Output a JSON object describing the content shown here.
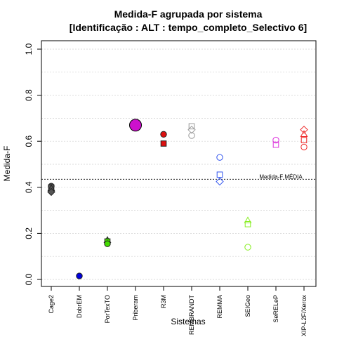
{
  "chart_data": {
    "type": "scatter",
    "title": "Medida-F agrupada por sistema",
    "subtitle": "[Identificação : ALT : tempo_completo_Selectivo 6]",
    "xlabel": "Sistemas",
    "ylabel": "Medida-F",
    "ylim": [
      0,
      1
    ],
    "yticks": [
      "0.0",
      "0.2",
      "0.4",
      "0.6",
      "0.8",
      "1.0"
    ],
    "grid": true,
    "categories": [
      "Cage2",
      "DobrEM",
      "PorTexTO",
      "Priberam",
      "R3M",
      "REMBRANDT",
      "REMMA",
      "SEIGeo",
      "SeRELeP",
      "XIP-L2F/Xerox"
    ],
    "reference_line": {
      "value": 0.435,
      "label": "Medida-F MÉDIA"
    },
    "series": [
      {
        "category": "Cage2",
        "color": "#555555",
        "points": [
          {
            "y": 0.405,
            "shape": "circle",
            "filled": true
          },
          {
            "y": 0.4,
            "shape": "square",
            "filled": true
          },
          {
            "y": 0.395,
            "shape": "triangle",
            "filled": true
          },
          {
            "y": 0.38,
            "shape": "diamond",
            "filled": true
          }
        ]
      },
      {
        "category": "DobrEM",
        "color": "#0000dd",
        "points": [
          {
            "y": 0.015,
            "shape": "circle",
            "filled": true
          }
        ]
      },
      {
        "category": "PorTexTO",
        "color": "#44dd00",
        "points": [
          {
            "y": 0.17,
            "shape": "triangle",
            "filled": true
          },
          {
            "y": 0.165,
            "shape": "square",
            "filled": true
          },
          {
            "y": 0.155,
            "shape": "circle",
            "filled": true
          }
        ]
      },
      {
        "category": "Priberam",
        "color": "#cc11cc",
        "points": [
          {
            "y": 0.67,
            "shape": "circle",
            "filled": true,
            "large": true
          }
        ]
      },
      {
        "category": "R3M",
        "color": "#dd1111",
        "points": [
          {
            "y": 0.63,
            "shape": "circle",
            "filled": true
          },
          {
            "y": 0.59,
            "shape": "square",
            "filled": true
          }
        ]
      },
      {
        "category": "REMBRANDT",
        "color": "#999999",
        "points": [
          {
            "y": 0.665,
            "shape": "square",
            "filled": false
          },
          {
            "y": 0.65,
            "shape": "diamond",
            "filled": false
          },
          {
            "y": 0.625,
            "shape": "circle",
            "filled": false
          }
        ]
      },
      {
        "category": "REMMA",
        "color": "#3355ee",
        "points": [
          {
            "y": 0.53,
            "shape": "circle",
            "filled": false
          },
          {
            "y": 0.455,
            "shape": "square",
            "filled": false
          },
          {
            "y": 0.425,
            "shape": "diamond",
            "filled": false
          }
        ]
      },
      {
        "category": "SEIGeo",
        "color": "#88ee22",
        "points": [
          {
            "y": 0.255,
            "shape": "triangle",
            "filled": false
          },
          {
            "y": 0.24,
            "shape": "square",
            "filled": false
          },
          {
            "y": 0.14,
            "shape": "circle",
            "filled": false
          }
        ]
      },
      {
        "category": "SeRELeP",
        "color": "#dd33dd",
        "points": [
          {
            "y": 0.605,
            "shape": "circle",
            "filled": false
          },
          {
            "y": 0.585,
            "shape": "square",
            "filled": false
          }
        ]
      },
      {
        "category": "XIP-L2F/Xerox",
        "color": "#ee2222",
        "points": [
          {
            "y": 0.65,
            "shape": "diamond",
            "filled": false
          },
          {
            "y": 0.63,
            "shape": "triangle",
            "filled": false
          },
          {
            "y": 0.605,
            "shape": "square",
            "filled": false
          },
          {
            "y": 0.575,
            "shape": "circle",
            "filled": false
          }
        ]
      }
    ]
  }
}
